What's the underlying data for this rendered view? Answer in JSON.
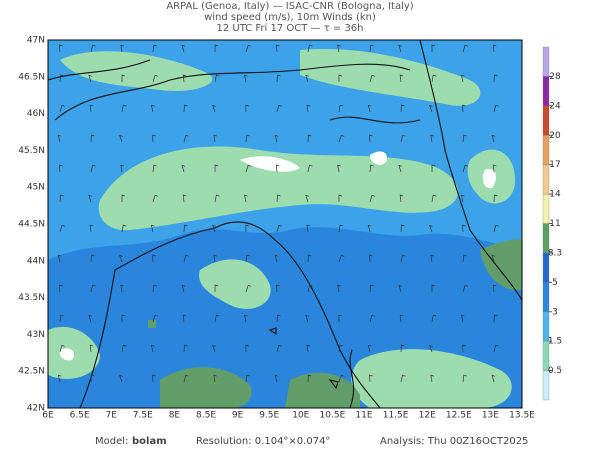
{
  "header": {
    "line1": "ARPAL (Genoa, Italy)  —  ISAC-CNR (Bologna, Italy)",
    "line2": "wind speed (m/s), 10m Winds (kn)",
    "line3": "12 UTC Fri 17 OCT  —  τ = 36h"
  },
  "lat_labels": [
    "47N",
    "46.5N",
    "46N",
    "45.5N",
    "45N",
    "44.5N",
    "44N",
    "43.5N",
    "43N",
    "42.5N",
    "42N"
  ],
  "lon_labels": [
    "6E",
    "6.5E",
    "7E",
    "7.5E",
    "8E",
    "8.5E",
    "9E",
    "9.5E",
    "10E",
    "10.5E",
    "11E",
    "11.5E",
    "12E",
    "12.5E",
    "13E",
    "13.5E"
  ],
  "colorbar": {
    "levels": [
      0.5,
      1.5,
      3,
      5,
      8.3,
      11,
      14,
      17,
      20,
      24,
      28
    ],
    "colors": [
      "#c8f0f4",
      "#8fd6b4",
      "#4fb4e8",
      "#2a86dc",
      "#2468c8",
      "#5f9e64",
      "#f4f0b0",
      "#f0c890",
      "#e8a060",
      "#c84830",
      "#8a2aa0",
      "#b8a8e8"
    ]
  },
  "footer": {
    "model_label": "Model:",
    "model": "bolam",
    "resolution": "Resolution: 0.104°×0.074°",
    "analysis": "Analysis: Thu 00Z16OCT2025"
  }
}
